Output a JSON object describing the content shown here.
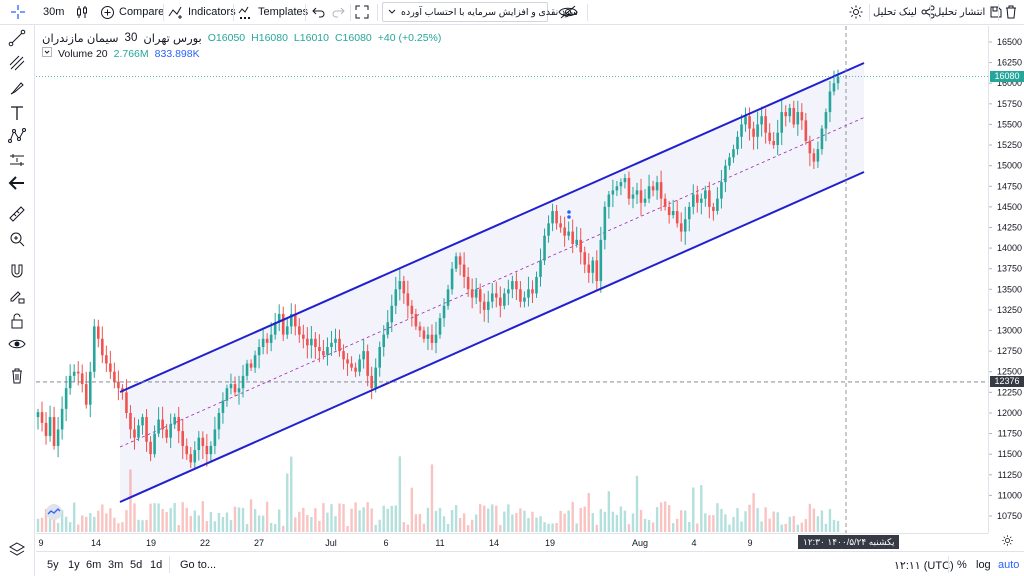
{
  "toolbar": {
    "interval": "30m",
    "compare_label": "Compare",
    "indicators_label": "Indicators",
    "templates_label": "Templates",
    "strategy_select": "سود نقدی و افزایش سرمایه با احتساب آورده",
    "publish_label": "انتشار تحلیل",
    "share_link_label": "لینک تحلیل"
  },
  "legend": {
    "symbol": "سیمان مازندران",
    "interval": "30",
    "exchange": "بورس تهران",
    "open": "O16050",
    "high": "H16080",
    "low": "L16010",
    "close": "C16080",
    "change": "+40 (+0.25%)",
    "volume_label": "Volume 20",
    "volume_value": "2.766M",
    "volume_ma": "833.898K"
  },
  "price_axis": {
    "ticks": [
      16500,
      16250,
      16000,
      15750,
      15500,
      15250,
      15000,
      14750,
      14500,
      14250,
      14000,
      13750,
      13500,
      13250,
      13000,
      12750,
      12500,
      12250,
      12000,
      11750,
      11500,
      11250,
      11000,
      10750
    ],
    "last_price": "16080",
    "crosshair_price": "12376",
    "last_price_color": "#26a69a",
    "crosshair_color": "#363a45"
  },
  "time_axis": {
    "ticks": [
      "9",
      "14",
      "19",
      "22",
      "27",
      "Jul",
      "6",
      "11",
      "14",
      "19",
      "Aug",
      "4",
      "9"
    ],
    "crosshair_label": "یکشنبه ۱۴۰۰/۵/۲۴   ۱۲:۳۰"
  },
  "bottom_bar": {
    "ranges": [
      "5y",
      "1y",
      "6m",
      "3m",
      "5d",
      "1d"
    ],
    "goto_label": "Go to...",
    "clock": "۱۲:۱۱ (UTC)",
    "percent_label": "%",
    "log_label": "log",
    "auto_label": "auto"
  },
  "colors": {
    "up": "#26a69a",
    "down": "#ef5350",
    "channel": "#2020d0",
    "channel_fill": "#f0f0fa",
    "midline": "#9c27b0"
  },
  "chart_data": {
    "type": "candlestick",
    "price_range": [
      10600,
      16700
    ],
    "price_series": [
      12010,
      11880,
      11720,
      11950,
      11600,
      11800,
      12050,
      12300,
      12450,
      12500,
      12480,
      12350,
      12100,
      12500,
      13050,
      12900,
      12700,
      12600,
      12500,
      12380,
      12300,
      12250,
      12000,
      11800,
      11700,
      11850,
      11950,
      11650,
      11500,
      11750,
      11920,
      11800,
      11700,
      11860,
      11950,
      11780,
      11600,
      11500,
      11400,
      11550,
      11700,
      11600,
      11500,
      11600,
      11800,
      12000,
      12150,
      12300,
      12350,
      12250,
      12300,
      12450,
      12600,
      12550,
      12700,
      12800,
      12900,
      12850,
      12950,
      13100,
      13200,
      12950,
      13050,
      13200,
      13050,
      12950,
      12900,
      12820,
      12900,
      12800,
      12750,
      12700,
      12800,
      12850,
      12900,
      12750,
      12650,
      12600,
      12550,
      12500,
      12650,
      12750,
      12450,
      12300,
      12550,
      12800,
      12950,
      13100,
      13300,
      13500,
      13600,
      13450,
      13300,
      13200,
      13050,
      13000,
      12900,
      12950,
      12850,
      12950,
      13150,
      13300,
      13500,
      13750,
      13900,
      13800,
      13650,
      13500,
      13400,
      13500,
      13350,
      13250,
      13350,
      13450,
      13400,
      13300,
      13450,
      13500,
      13600,
      13500,
      13350,
      13400,
      13500,
      13450,
      13650,
      13850,
      14150,
      14300,
      14450,
      14300,
      14250,
      14150,
      14200,
      14050,
      14100,
      13950,
      13800,
      13700,
      13850,
      13600,
      14100,
      14500,
      14650,
      14700,
      14750,
      14800,
      14850,
      14600,
      14650,
      14700,
      14550,
      14600,
      14750,
      14700,
      14800,
      14600,
      14500,
      14400,
      14450,
      14300,
      14200,
      14350,
      14500,
      14650,
      14550,
      14600,
      14700,
      14500,
      14450,
      14600,
      14800,
      15000,
      15100,
      15200,
      15350,
      15500,
      15600,
      15450,
      15350,
      15500,
      15600,
      15400,
      15300,
      15250,
      15400,
      15650,
      15600,
      15700,
      15500,
      15650,
      15550,
      15300,
      15150,
      15050,
      15200,
      15450,
      15650,
      15900,
      16000,
      16080
    ],
    "volume_ma_line": "visible"
  }
}
